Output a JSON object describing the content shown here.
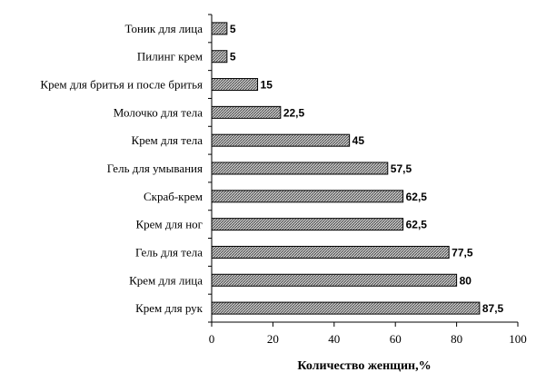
{
  "chart_data": {
    "type": "bar",
    "orientation": "horizontal",
    "categories": [
      "Тоник для лица",
      "Пилинг крем",
      "Крем для бритья и после бритья",
      "Молочко для тела",
      "Крем для тела",
      "Гель для умывания",
      "Скраб-крем",
      "Крем для ног",
      "Гель для тела",
      "Крем для лица",
      "Крем для рук"
    ],
    "values": [
      5,
      5,
      15,
      22.5,
      45,
      57.5,
      62.5,
      62.5,
      77.5,
      80,
      87.5
    ],
    "value_labels": [
      "5",
      "5",
      "15",
      "22,5",
      "45",
      "57,5",
      "62,5",
      "62,5",
      "77,5",
      "80",
      "87,5"
    ],
    "title": "",
    "xlabel": "Количество женщин,%",
    "ylabel": "",
    "xlim": [
      0,
      100
    ],
    "xticks": [
      0,
      20,
      40,
      60,
      80,
      100
    ],
    "xtick_labels": [
      "0",
      "20",
      "40",
      "60",
      "80",
      "100"
    ],
    "grid": false,
    "legend": "none",
    "bar_fill": "hatched-gray",
    "colors": {
      "bar_border": "#000000",
      "hatch": "#555555",
      "bar_bg": "#bdbdbd"
    }
  }
}
